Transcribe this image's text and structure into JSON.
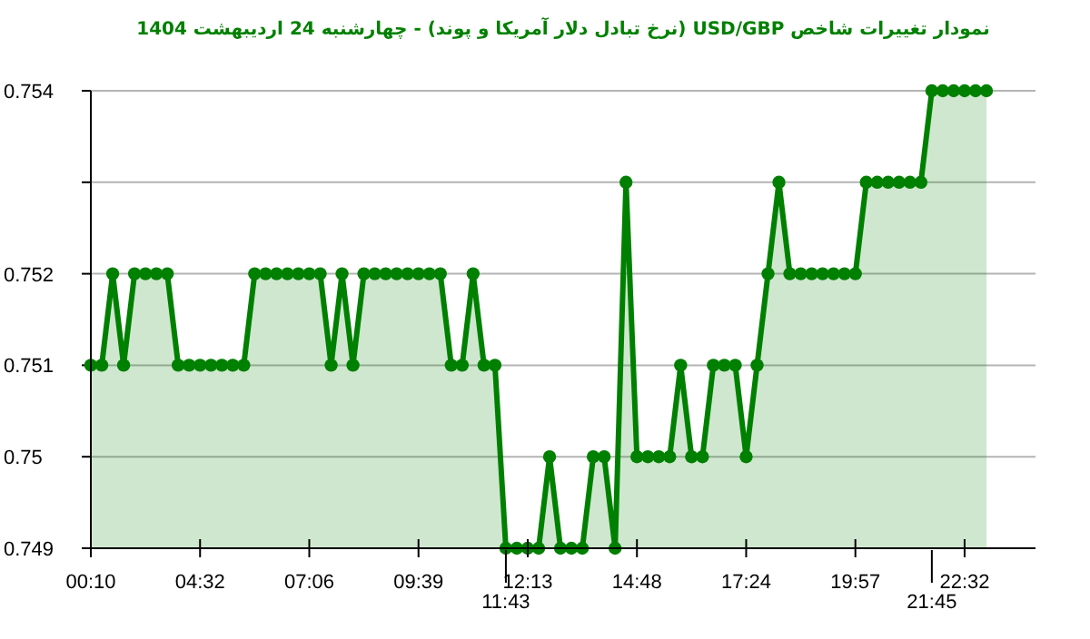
{
  "chart_data": {
    "type": "area",
    "title": "نمودار تغییرات شاخص USD/GBP (نرخ تبادل دلار آمریکا و پوند) - چهارشنبه 24 اردیبهشت 1404",
    "categories": [
      "00:10",
      null,
      null,
      null,
      null,
      null,
      null,
      null,
      null,
      null,
      "04:32",
      null,
      null,
      null,
      null,
      null,
      null,
      null,
      null,
      null,
      "07:06",
      null,
      null,
      null,
      null,
      null,
      null,
      null,
      null,
      null,
      "09:39",
      null,
      null,
      null,
      null,
      null,
      null,
      null,
      "11:43",
      null,
      "12:13",
      null,
      null,
      null,
      null,
      null,
      null,
      null,
      null,
      null,
      "14:48",
      null,
      null,
      null,
      null,
      null,
      null,
      null,
      null,
      null,
      "17:24",
      null,
      null,
      null,
      null,
      null,
      null,
      null,
      null,
      null,
      "19:57",
      null,
      null,
      null,
      null,
      null,
      null,
      "21:45",
      null,
      null,
      "22:32",
      null,
      null
    ],
    "values": [
      0.751,
      0.751,
      0.752,
      0.751,
      0.752,
      0.752,
      0.752,
      0.752,
      0.751,
      0.751,
      0.751,
      0.751,
      0.751,
      0.751,
      0.751,
      0.752,
      0.752,
      0.752,
      0.752,
      0.752,
      0.752,
      0.752,
      0.751,
      0.752,
      0.751,
      0.752,
      0.752,
      0.752,
      0.752,
      0.752,
      0.752,
      0.752,
      0.752,
      0.751,
      0.751,
      0.752,
      0.751,
      0.751,
      0.749,
      0.749,
      0.749,
      0.749,
      0.75,
      0.749,
      0.749,
      0.749,
      0.75,
      0.75,
      0.749,
      0.753,
      0.75,
      0.75,
      0.75,
      0.75,
      0.751,
      0.75,
      0.75,
      0.751,
      0.751,
      0.751,
      0.75,
      0.751,
      0.752,
      0.753,
      0.752,
      0.752,
      0.752,
      0.752,
      0.752,
      0.752,
      0.752,
      0.753,
      0.753,
      0.753,
      0.753,
      0.753,
      0.753,
      0.754,
      0.754,
      0.754,
      0.754,
      0.754,
      0.754
    ],
    "color": "#008000",
    "ylim": [
      0.749,
      0.754
    ],
    "yticks": [
      0.749,
      0.75,
      0.751,
      0.752,
      {
        "value": 0.753,
        "label": null
      },
      0.754
    ],
    "grid": "y",
    "marker": "circle"
  }
}
